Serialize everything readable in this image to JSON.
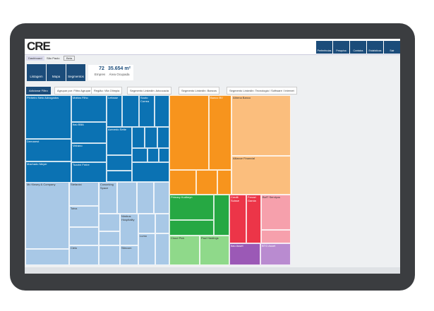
{
  "header": {
    "logo": "CRE",
    "nav": [
      "Preferências",
      "Pesquisa",
      "Contatos",
      "Estatísticas",
      "Sair"
    ]
  },
  "tabs": [
    "Dashboard",
    "São Paulo",
    "Beta"
  ],
  "toolbar": {
    "buttons": [
      "Listagem",
      "Mapa",
      "Segmentos"
    ],
    "stats": [
      {
        "value": 72,
        "label": "Empresas"
      },
      {
        "value": "35.654 m²",
        "label": "Área Ocupada"
      }
    ]
  },
  "filters": {
    "actions": [
      "Adicionar Filtro",
      "Agrupar por: Filtro Agrupar"
    ],
    "chips": [
      "Região: Vila Olímpia",
      "Segmento LinkedIn: Advocacia",
      "Segmento LinkedIn: Bancos",
      "Segmento LinkedIn: Tecnologia / Software / Internet"
    ]
  },
  "treemap": {
    "tiles": [
      "Pinheiro Neto Advogados",
      "Mattos Filho",
      "Itaú BBA",
      "Demarest",
      "Machado Meyer",
      "Veirano",
      "Tozzini Freire",
      "Lefosse",
      "Souto Correa",
      "Azevedo Sette",
      "Mc Kinsey & Company",
      "Stefanini",
      "Totvs",
      "Cielo",
      "Coworking Space",
      "Nimbus Hospitality",
      "Sitecom",
      "Lumo",
      "Banco BV",
      "Athena Banco",
      "Alliance Financial",
      "Primary Kudimyn",
      "Cloud Pick",
      "Paul Hastings",
      "Credit Suisse",
      "Ferrari Garcia",
      "BofT Serviços",
      "Itaú Asset",
      "BTG Asset"
    ]
  }
}
